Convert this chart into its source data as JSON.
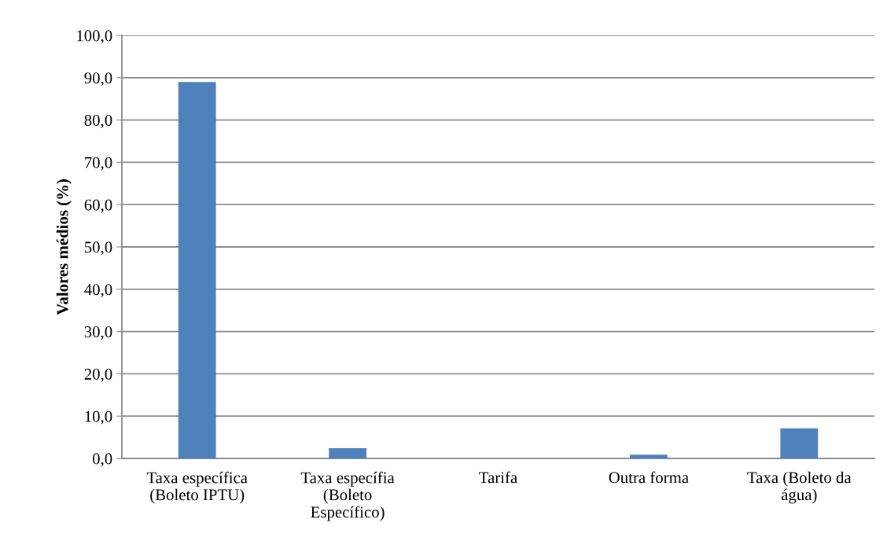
{
  "chart_data": {
    "type": "bar",
    "ylabel": "Valores médios (%)",
    "categories": [
      "Taxa específica\n(Boleto IPTU)",
      "Taxa específia\n(Boleto\nEspecífico)",
      "Tarifa",
      "Outra forma",
      "Taxa (Boleto da\nágua)"
    ],
    "values": [
      89.0,
      2.4,
      0,
      0.9,
      7.1
    ],
    "color": "#4f81bd",
    "ylim": [
      0,
      100
    ],
    "yticks": [
      {
        "value": 0,
        "label": "0,0"
      },
      {
        "value": 10,
        "label": "10,0"
      },
      {
        "value": 20,
        "label": "20,0"
      },
      {
        "value": 30,
        "label": "30,0"
      },
      {
        "value": 40,
        "label": "40,0"
      },
      {
        "value": 50,
        "label": "50,0"
      },
      {
        "value": 60,
        "label": "60,0"
      },
      {
        "value": 70,
        "label": "70,0"
      },
      {
        "value": 80,
        "label": "80,0"
      },
      {
        "value": 90,
        "label": "90,0"
      },
      {
        "value": 100,
        "label": "100,0"
      }
    ],
    "grid": "y"
  }
}
